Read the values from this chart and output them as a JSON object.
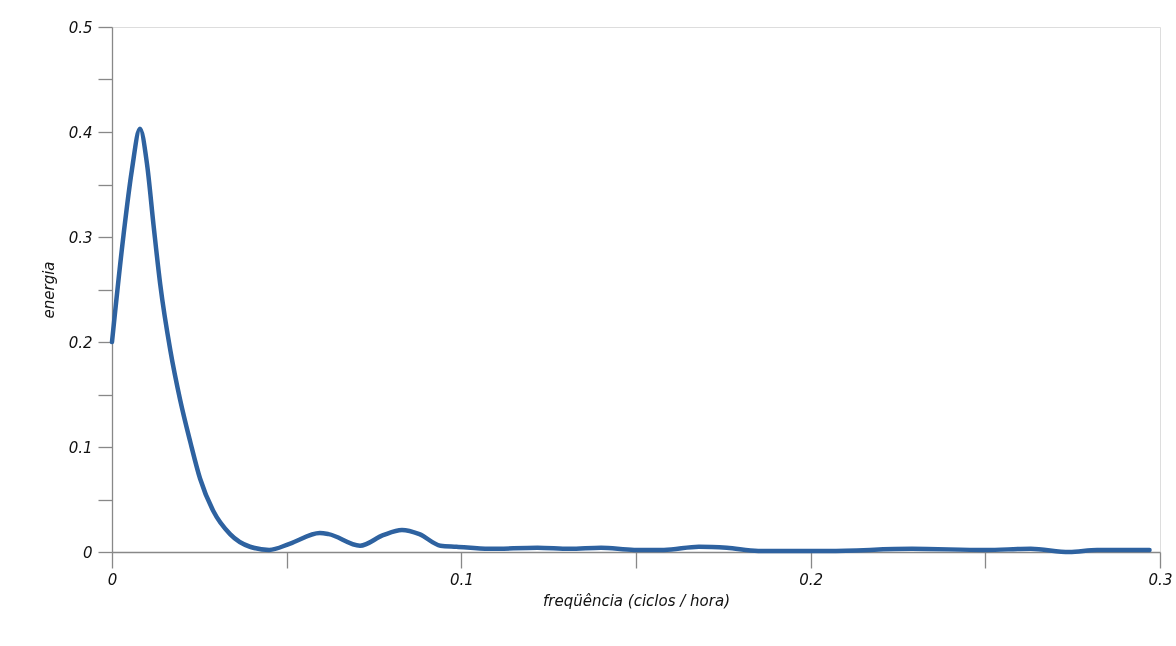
{
  "chart_data": {
    "type": "line",
    "xlabel": "freqüência (ciclos / hora)",
    "ylabel": "energia",
    "x": [
      0,
      0.0033,
      0.0057,
      0.008,
      0.01,
      0.0119,
      0.0138,
      0.0167,
      0.0195,
      0.0224,
      0.0252,
      0.029,
      0.0338,
      0.0395,
      0.045,
      0.051,
      0.0595,
      0.062,
      0.071,
      0.0776,
      0.083,
      0.088,
      0.094,
      0.0986,
      0.108,
      0.1218,
      0.131,
      0.14,
      0.1495,
      0.158,
      0.168,
      0.176,
      0.185,
      0.205,
      0.229,
      0.25,
      0.263,
      0.274,
      0.282,
      0.297
    ],
    "series": [
      {
        "color": "#2e62a0",
        "values": [
          0.2,
          0.302,
          0.364,
          0.403,
          0.37,
          0.311,
          0.255,
          0.192,
          0.145,
          0.105,
          0.07,
          0.039,
          0.017,
          0.005,
          0.002,
          0.008,
          0.018,
          0.017,
          0.006,
          0.016,
          0.021,
          0.017,
          0.006,
          0.005,
          0.003,
          0.004,
          0.003,
          0.004,
          0.002,
          0.002,
          0.005,
          0.004,
          0.001,
          0.001,
          0.003,
          0.002,
          0.003,
          0.0,
          0.002,
          0.002
        ]
      }
    ],
    "xlim": [
      0,
      0.3
    ],
    "ylim": [
      0,
      0.5
    ],
    "xticks": [
      0,
      {
        "value": 0.05,
        "label": null
      },
      0.1,
      {
        "value": 0.15,
        "label": null
      },
      0.2,
      {
        "value": 0.25,
        "label": null
      },
      0.3
    ],
    "yticks": [
      0,
      {
        "value": 0.05,
        "label": null
      },
      0.1,
      {
        "value": 0.15,
        "label": null
      },
      0.2,
      {
        "value": 0.25,
        "label": null
      },
      0.3,
      {
        "value": 0.35,
        "label": null
      },
      0.4,
      {
        "value": 0.45,
        "label": null
      },
      0.5
    ],
    "grid": false,
    "marker": "none",
    "line_style": "solid"
  }
}
